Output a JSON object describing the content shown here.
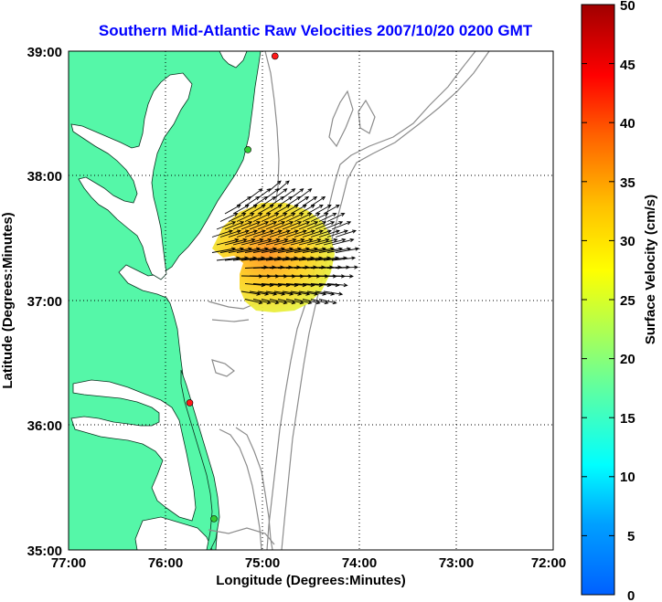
{
  "map": {
    "title": "Southern Mid-Atlantic Raw Velocities 2007/10/20 0200 GMT",
    "title_color": "#0000ff",
    "xlabel": "Longitude (Degrees:Minutes)",
    "ylabel": "Latitude (Degrees:Minutes)",
    "x_ticks": [
      "77:00",
      "76:00",
      "75:00",
      "74:00",
      "73:00",
      "72:00"
    ],
    "y_ticks": [
      "39:00",
      "38:00",
      "37:00",
      "36:00",
      "35:00"
    ],
    "land_color": "#55f7a8",
    "bathymetry_color": "#8c8c8c",
    "grid": "dotted",
    "stations": [
      {
        "lon": -74.87,
        "lat": 38.96,
        "color": "#ff1a1a"
      },
      {
        "lon": -75.15,
        "lat": 38.21,
        "color": "#33cc33"
      },
      {
        "lon": -75.75,
        "lat": 36.18,
        "color": "#ff1a1a"
      },
      {
        "lon": -75.5,
        "lat": 35.25,
        "color": "#33cc33"
      }
    ]
  },
  "colorbar": {
    "label": "Surface Velocity (cm/s)",
    "ticks": [
      "50",
      "45",
      "40",
      "35",
      "30",
      "25",
      "20",
      "15",
      "10",
      "5",
      "0"
    ],
    "min": 0,
    "max": 50
  }
}
